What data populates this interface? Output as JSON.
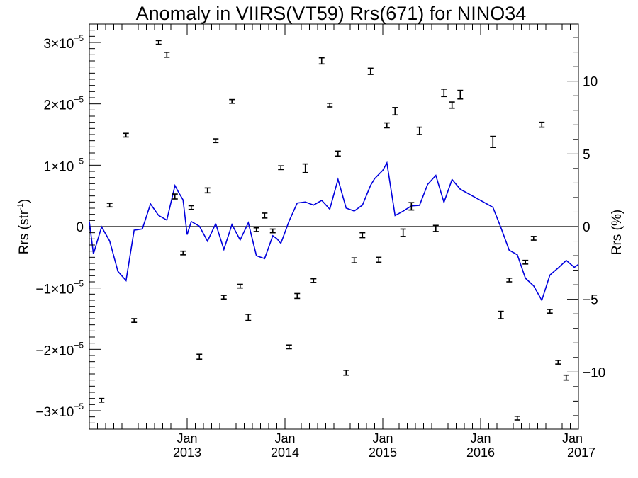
{
  "chart_data": {
    "type": "scatter",
    "title": "Anomaly in VIIRS(VT59) Rrs(671) for NINO34",
    "ylabel_left": "Rrs (str",
    "ylabel_left_sup": "-1",
    "ylabel_left_close": ")",
    "ylabel_right": "Rrs (%)",
    "xlim": [
      2012.0,
      2017.0
    ],
    "ylim_left": [
      -3.3e-05,
      3.3e-05
    ],
    "ylim_right": [
      -13.93,
      13.93
    ],
    "grid": false,
    "legend": "none",
    "x_ticks": [
      {
        "x": 2013.0,
        "month": "Jan",
        "year": "2013"
      },
      {
        "x": 2014.0,
        "month": "Jan",
        "year": "2014"
      },
      {
        "x": 2015.0,
        "month": "Jan",
        "year": "2015"
      },
      {
        "x": 2016.0,
        "month": "Jan",
        "year": "2016"
      },
      {
        "x": 2017.0,
        "month": "Jan",
        "year": "2017"
      }
    ],
    "y_ticks_left": [
      {
        "value": 3e-05,
        "mant": "3",
        "times": "×10",
        "exp": "−5"
      },
      {
        "value": 2e-05,
        "mant": "2",
        "times": "×10",
        "exp": "−5"
      },
      {
        "value": 1e-05,
        "mant": "1",
        "times": "×10",
        "exp": "−5"
      },
      {
        "value": 0,
        "mant": "0",
        "times": "",
        "exp": ""
      },
      {
        "value": -1e-05,
        "mant": "−1",
        "times": "×10",
        "exp": "−5"
      },
      {
        "value": -2e-05,
        "mant": "−2",
        "times": "×10",
        "exp": "−5"
      },
      {
        "value": -3e-05,
        "mant": "−3",
        "times": "×10",
        "exp": "−5"
      }
    ],
    "y_ticks_right": [
      {
        "value": 10,
        "label": "10"
      },
      {
        "value": 5,
        "label": "5"
      },
      {
        "value": 0,
        "label": "0"
      },
      {
        "value": -5,
        "label": "−5"
      },
      {
        "value": -10,
        "label": "−10"
      }
    ],
    "zero_line": {
      "value": 0,
      "color": "#000000"
    },
    "series": [
      {
        "kind": "points",
        "axis": "left",
        "color": "#000000",
        "points": [
          {
            "x": 2012.125,
            "y": -2.83e-05,
            "err": 3e-07
          },
          {
            "x": 2012.208,
            "y": 3.5e-06,
            "err": 3e-07
          },
          {
            "x": 2012.375,
            "y": 1.49e-05,
            "err": 3e-07
          },
          {
            "x": 2012.458,
            "y": -1.53e-05,
            "err": 3e-07
          },
          {
            "x": 2012.708,
            "y": 3e-05,
            "err": 3e-07
          },
          {
            "x": 2012.792,
            "y": 2.8e-05,
            "err": 4e-07
          },
          {
            "x": 2012.875,
            "y": 4.9e-06,
            "err": 4e-07
          },
          {
            "x": 2012.958,
            "y": -4.3e-06,
            "err": 3e-07
          },
          {
            "x": 2013.042,
            "y": 3.1e-06,
            "err": 3e-07
          },
          {
            "x": 2013.125,
            "y": -2.12e-05,
            "err": 4e-07
          },
          {
            "x": 2013.208,
            "y": 5.9e-06,
            "err": 4e-07
          },
          {
            "x": 2013.292,
            "y": 1.4e-05,
            "err": 3e-07
          },
          {
            "x": 2013.375,
            "y": -1.15e-05,
            "err": 3e-07
          },
          {
            "x": 2013.458,
            "y": 2.04e-05,
            "err": 3e-07
          },
          {
            "x": 2013.542,
            "y": -9.7e-06,
            "err": 3e-07
          },
          {
            "x": 2013.625,
            "y": -1.48e-05,
            "err": 5e-07
          },
          {
            "x": 2013.708,
            "y": -5e-07,
            "err": 3e-07
          },
          {
            "x": 2013.792,
            "y": 1.8e-06,
            "err": 4e-07
          },
          {
            "x": 2013.875,
            "y": -7e-07,
            "err": 3e-07
          },
          {
            "x": 2013.958,
            "y": 9.6e-06,
            "err": 3e-07
          },
          {
            "x": 2014.042,
            "y": -1.96e-05,
            "err": 3e-07
          },
          {
            "x": 2014.125,
            "y": -1.13e-05,
            "err": 4e-07
          },
          {
            "x": 2014.208,
            "y": 9.5e-06,
            "err": 7e-07
          },
          {
            "x": 2014.292,
            "y": -8.8e-06,
            "err": 3e-07
          },
          {
            "x": 2014.375,
            "y": 2.7e-05,
            "err": 5e-07
          },
          {
            "x": 2014.458,
            "y": 1.98e-05,
            "err": 3e-07
          },
          {
            "x": 2014.542,
            "y": 1.19e-05,
            "err": 4e-07
          },
          {
            "x": 2014.625,
            "y": -2.38e-05,
            "err": 4e-07
          },
          {
            "x": 2014.708,
            "y": -5.5e-06,
            "err": 4e-07
          },
          {
            "x": 2014.792,
            "y": -1.4e-06,
            "err": 4e-07
          },
          {
            "x": 2014.875,
            "y": 2.53e-05,
            "err": 5e-07
          },
          {
            "x": 2014.958,
            "y": -5.4e-06,
            "err": 4e-07
          },
          {
            "x": 2015.042,
            "y": 1.65e-05,
            "err": 4e-07
          },
          {
            "x": 2015.125,
            "y": 1.88e-05,
            "err": 6e-07
          },
          {
            "x": 2015.208,
            "y": -1e-06,
            "err": 6e-07
          },
          {
            "x": 2015.292,
            "y": 3.3e-06,
            "err": 6e-07
          },
          {
            "x": 2015.375,
            "y": 1.56e-05,
            "err": 6e-07
          },
          {
            "x": 2015.542,
            "y": -3e-07,
            "err": 5e-07
          },
          {
            "x": 2015.625,
            "y": 2.18e-05,
            "err": 6e-07
          },
          {
            "x": 2015.708,
            "y": 1.98e-05,
            "err": 5e-07
          },
          {
            "x": 2015.792,
            "y": 2.15e-05,
            "err": 7e-07
          },
          {
            "x": 2016.125,
            "y": 1.38e-05,
            "err": 9e-07
          },
          {
            "x": 2016.208,
            "y": -1.44e-05,
            "err": 6e-07
          },
          {
            "x": 2016.292,
            "y": -8.7e-06,
            "err": 3e-07
          },
          {
            "x": 2016.375,
            "y": -3.12e-05,
            "err": 3e-07
          },
          {
            "x": 2016.458,
            "y": -5.8e-06,
            "err": 3e-07
          },
          {
            "x": 2016.542,
            "y": -1.9e-06,
            "err": 3e-07
          },
          {
            "x": 2016.625,
            "y": 1.66e-05,
            "err": 4e-07
          },
          {
            "x": 2016.708,
            "y": -1.38e-05,
            "err": 3e-07
          },
          {
            "x": 2016.792,
            "y": -2.21e-05,
            "err": 3e-07
          },
          {
            "x": 2016.875,
            "y": -2.46e-05,
            "err": 4e-07
          }
        ]
      },
      {
        "kind": "line",
        "axis": "right",
        "color": "#0000dd",
        "x": [
          2012.0,
          2012.042,
          2012.125,
          2012.208,
          2012.292,
          2012.375,
          2012.458,
          2012.542,
          2012.625,
          2012.708,
          2012.792,
          2012.875,
          2012.917,
          2012.958,
          2013.0,
          2013.042,
          2013.125,
          2013.208,
          2013.292,
          2013.375,
          2013.458,
          2013.542,
          2013.625,
          2013.708,
          2013.792,
          2013.875,
          2013.917,
          2013.958,
          2014.042,
          2014.125,
          2014.208,
          2014.292,
          2014.375,
          2014.458,
          2014.542,
          2014.625,
          2014.708,
          2014.792,
          2014.875,
          2014.917,
          2015.0,
          2015.042,
          2015.125,
          2015.208,
          2015.292,
          2015.375,
          2015.458,
          2015.542,
          2015.625,
          2015.708,
          2015.792,
          2016.125,
          2016.208,
          2016.292,
          2016.375,
          2016.458,
          2016.542,
          2016.625,
          2016.708,
          2016.792,
          2016.875,
          2016.958,
          2017.0
        ],
        "y": [
          0.35,
          -1.88,
          -0.02,
          -0.99,
          -3.08,
          -3.71,
          -0.25,
          -0.16,
          1.56,
          0.77,
          0.45,
          2.82,
          2.31,
          1.84,
          -0.55,
          0.35,
          0.03,
          -1.0,
          0.2,
          -1.57,
          0.14,
          -0.92,
          0.27,
          -2.0,
          -2.2,
          -0.63,
          -0.83,
          -1.15,
          0.38,
          1.62,
          1.69,
          1.48,
          1.8,
          1.2,
          3.25,
          1.27,
          1.07,
          1.48,
          2.84,
          3.3,
          3.87,
          4.38,
          0.76,
          1.06,
          1.42,
          1.46,
          2.9,
          3.52,
          1.67,
          3.24,
          2.57,
          1.33,
          -0.08,
          -1.62,
          -1.94,
          -3.55,
          -4.07,
          -5.07,
          -3.33,
          -2.85,
          -2.33,
          -2.8,
          -2.6
        ]
      }
    ]
  }
}
